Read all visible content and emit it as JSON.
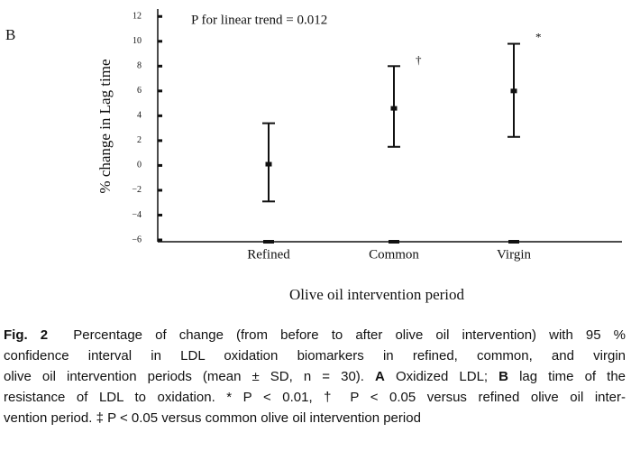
{
  "chart_data": {
    "type": "errorbar",
    "panel_label": "B",
    "annotation": "P for linear trend = 0.012",
    "x_label": "Olive oil intervention period",
    "y_label": "% change in Lag time",
    "categories": [
      "Refined",
      "Common",
      "Virgin"
    ],
    "values": [
      0.1,
      4.6,
      6.0
    ],
    "lower": [
      -2.9,
      1.5,
      2.3
    ],
    "upper": [
      3.4,
      8.0,
      9.8
    ],
    "markers": [
      null,
      "†",
      "*"
    ],
    "color": "#111111",
    "ylim": [
      -6,
      12.6
    ],
    "yticks": [
      {
        "value": -6,
        "label": "−6"
      },
      {
        "value": -4,
        "label": "−4"
      },
      {
        "value": -2,
        "label": "−2"
      },
      0,
      2,
      4,
      6,
      8,
      10,
      12
    ]
  },
  "caption": {
    "lines": [
      [
        {
          "text": "Fig. 2",
          "bold": true
        },
        {
          "text": "  Percentage of change (from before to after olive oil intervention) with 95 %",
          "bold": false
        }
      ],
      [
        {
          "text": "confidence interval in LDL oxidation biomarkers in refined, common, and virgin",
          "bold": false
        }
      ],
      [
        {
          "text": "olive oil intervention periods (mean ± SD, n = 30). ",
          "bold": false
        },
        {
          "text": "A",
          "bold": true
        },
        {
          "text": " Oxidized LDL; ",
          "bold": false
        },
        {
          "text": "B",
          "bold": true
        },
        {
          "text": " lag time of the",
          "bold": false
        }
      ],
      [
        {
          "text": "resistance of LDL to oxidation. * P < 0.01, † P < 0.05 versus refined olive oil inter-",
          "bold": false
        }
      ],
      [
        {
          "text": "vention period. ‡ P < 0.05 versus common olive oil intervention period",
          "bold": false
        }
      ]
    ]
  }
}
